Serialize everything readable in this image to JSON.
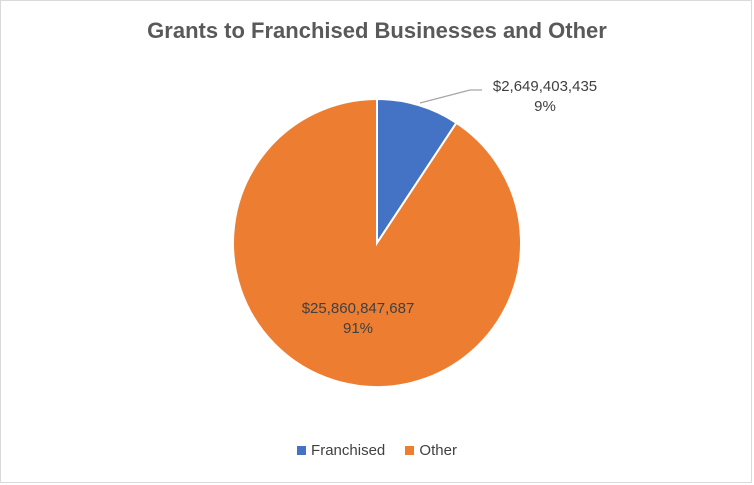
{
  "chart_data": {
    "type": "pie",
    "title": "Grants to Franchised Businesses and Other",
    "categories": [
      "Franchised",
      "Other"
    ],
    "values": [
      2649403435,
      25860847687
    ],
    "value_labels": [
      "$2,649,403,435",
      "$25,860,847,687"
    ],
    "percent_labels": [
      "9%",
      "91%"
    ],
    "colors": [
      "#4472c4",
      "#ed7d31"
    ],
    "legend_position": "bottom"
  }
}
